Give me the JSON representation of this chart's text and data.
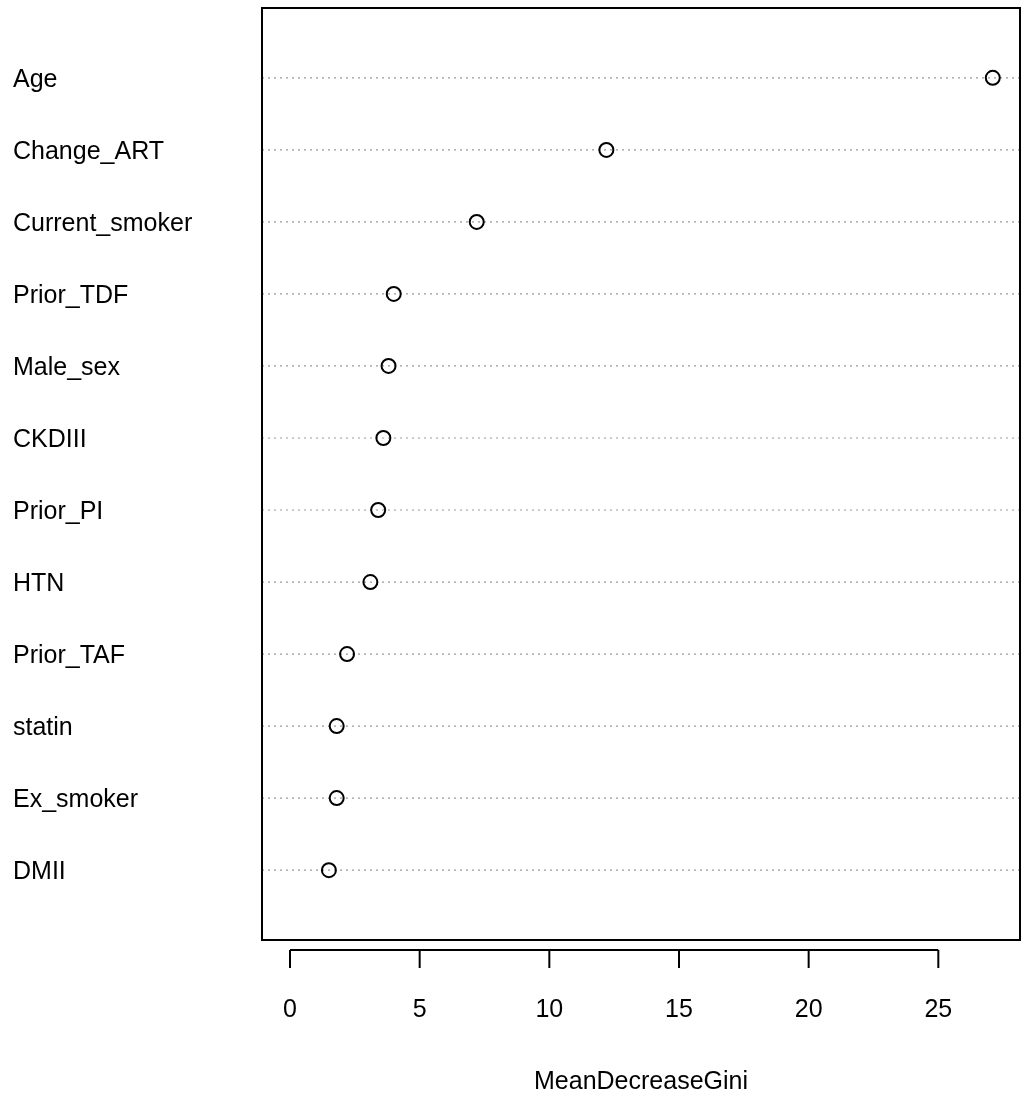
{
  "chart_data": {
    "type": "scatter",
    "orientation": "horizontal",
    "categories": [
      "Age",
      "Change_ART",
      "Current_smoker",
      "Prior_TDF",
      "Male_sex",
      "CKDIII",
      "Prior_PI",
      "HTN",
      "Prior_TAF",
      "statin",
      "Ex_smoker",
      "DMII"
    ],
    "values": [
      27.1,
      12.2,
      7.2,
      4.0,
      3.8,
      3.6,
      3.4,
      3.1,
      2.2,
      1.8,
      1.8,
      1.5
    ],
    "color": "#000000",
    "marker": "circle",
    "grid": "y",
    "xlim": [
      -1.08,
      28.15
    ],
    "xticks": [
      0,
      5,
      10,
      15,
      20,
      25
    ],
    "xlabel": "MeanDecreaseGini"
  }
}
